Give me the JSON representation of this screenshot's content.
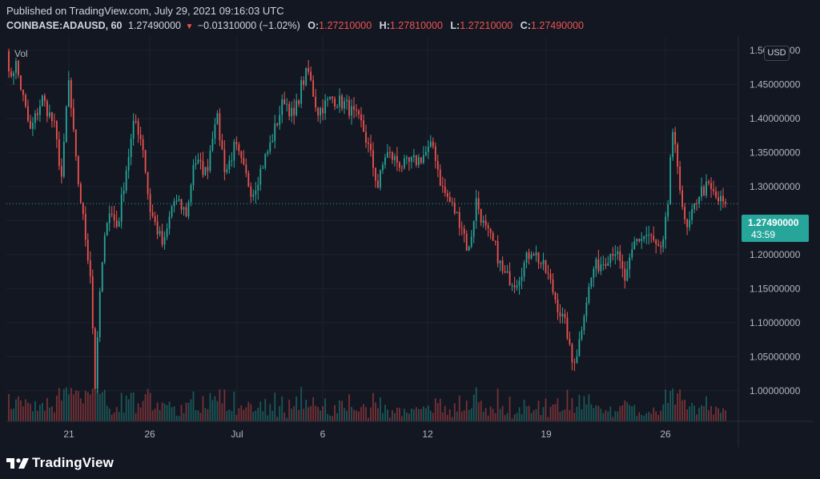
{
  "header": {
    "published": "Published on TradingView.com, July 29, 2021 09:16:03 UTC",
    "symbol": "COINBASE:ADAUSD, 60",
    "last": "1.27490000",
    "change": "−0.01310000 (−1.02%)",
    "o_label": "O:",
    "o_value": "1.27210000",
    "h_label": "H:",
    "h_value": "1.27810000",
    "l_label": "L:",
    "l_value": "1.27210000",
    "c_label": "C:",
    "c_value": "1.27490000"
  },
  "panel": {
    "vol_label": "Vol",
    "currency_button": "USD"
  },
  "price_badge": {
    "price": "1.27490000",
    "countdown": "43:59"
  },
  "branding": {
    "logo_icon": "tradingview-logo-icon",
    "logo_text": "TradingView"
  },
  "colors": {
    "up": "#26a69a",
    "down": "#ef5350",
    "background": "#131722",
    "grid": "#1e222d",
    "text": "#b2b5be"
  },
  "chart_data": {
    "type": "candlestick",
    "symbol": "COINBASE:ADAUSD",
    "interval": "60",
    "x_tick_labels": [
      "21",
      "26",
      "Jul",
      "6",
      "12",
      "19",
      "26"
    ],
    "y_tick_labels": [
      "1.50000000",
      "1.45000000",
      "1.40000000",
      "1.35000000",
      "1.30000000",
      "1.25000000",
      "1.20000000",
      "1.15000000",
      "1.10000000",
      "1.05000000",
      "1.00000000"
    ],
    "ylim": [
      0.955,
      1.52
    ],
    "current_price": 1.2749,
    "grid": true,
    "volume_panel": true,
    "price_path_approx": [
      [
        0,
        1.51
      ],
      [
        3,
        1.46
      ],
      [
        12,
        1.48
      ],
      [
        30,
        1.38
      ],
      [
        45,
        1.43
      ],
      [
        60,
        1.39
      ],
      [
        70,
        1.31
      ],
      [
        78,
        1.46
      ],
      [
        88,
        1.33
      ],
      [
        98,
        1.24
      ],
      [
        106,
        1.17
      ],
      [
        112,
        1.0
      ],
      [
        118,
        1.15
      ],
      [
        128,
        1.27
      ],
      [
        140,
        1.24
      ],
      [
        150,
        1.32
      ],
      [
        162,
        1.4
      ],
      [
        172,
        1.36
      ],
      [
        180,
        1.27
      ],
      [
        198,
        1.21
      ],
      [
        210,
        1.28
      ],
      [
        228,
        1.26
      ],
      [
        236,
        1.34
      ],
      [
        252,
        1.32
      ],
      [
        264,
        1.41
      ],
      [
        276,
        1.32
      ],
      [
        288,
        1.36
      ],
      [
        300,
        1.32
      ],
      [
        310,
        1.29
      ],
      [
        322,
        1.33
      ],
      [
        332,
        1.36
      ],
      [
        350,
        1.43
      ],
      [
        362,
        1.4
      ],
      [
        372,
        1.45
      ],
      [
        380,
        1.47
      ],
      [
        392,
        1.41
      ],
      [
        410,
        1.43
      ],
      [
        428,
        1.42
      ],
      [
        448,
        1.39
      ],
      [
        458,
        1.35
      ],
      [
        468,
        1.3
      ],
      [
        478,
        1.35
      ],
      [
        500,
        1.33
      ],
      [
        520,
        1.34
      ],
      [
        538,
        1.36
      ],
      [
        548,
        1.3
      ],
      [
        562,
        1.27
      ],
      [
        575,
        1.24
      ],
      [
        582,
        1.2
      ],
      [
        592,
        1.28
      ],
      [
        602,
        1.24
      ],
      [
        616,
        1.21
      ],
      [
        626,
        1.17
      ],
      [
        642,
        1.16
      ],
      [
        662,
        1.21
      ],
      [
        682,
        1.17
      ],
      [
        696,
        1.12
      ],
      [
        706,
        1.09
      ],
      [
        712,
        1.04
      ],
      [
        720,
        1.06
      ],
      [
        728,
        1.12
      ],
      [
        740,
        1.18
      ],
      [
        752,
        1.19
      ],
      [
        766,
        1.21
      ],
      [
        780,
        1.16
      ],
      [
        792,
        1.22
      ],
      [
        808,
        1.23
      ],
      [
        826,
        1.2
      ],
      [
        834,
        1.28
      ],
      [
        838,
        1.38
      ],
      [
        846,
        1.33
      ],
      [
        856,
        1.23
      ],
      [
        862,
        1.25
      ],
      [
        872,
        1.29
      ],
      [
        884,
        1.3
      ],
      [
        896,
        1.28
      ],
      [
        906,
        1.275
      ]
    ]
  }
}
